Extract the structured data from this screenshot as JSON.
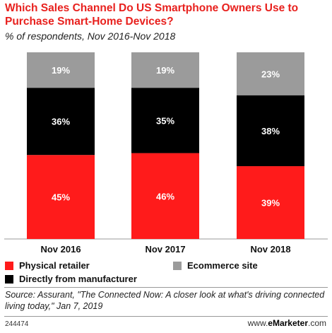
{
  "title": "Which Sales Channel Do US Smartphone Owners Use to Purchase Smart-Home Devices?",
  "subtitle": "% of respondents, Nov 2016-Nov 2018",
  "chart_data": {
    "type": "bar",
    "stacked": true,
    "categories": [
      "Nov 2016",
      "Nov 2017",
      "Nov 2018"
    ],
    "series": [
      {
        "name": "Physical retailer",
        "values": [
          45,
          46,
          39
        ],
        "labels": [
          "45%",
          "46%",
          "39%"
        ],
        "color": "#ff1b1b"
      },
      {
        "name": "Directly from manufacturer",
        "values": [
          36,
          35,
          38
        ],
        "labels": [
          "36%",
          "35%",
          "38%"
        ],
        "color": "#000000"
      },
      {
        "name": "Ecommerce site",
        "values": [
          19,
          19,
          23
        ],
        "labels": [
          "19%",
          "19%",
          "23%"
        ],
        "color": "#9b9b9b"
      }
    ],
    "ylim": [
      0,
      100
    ],
    "grid": false
  },
  "legend": {
    "physical": "Physical retailer",
    "ecommerce": "Ecommerce site",
    "direct": "Directly from manufacturer"
  },
  "source": "Source: Assurant, \"The Connected Now: A closer look at what's driving connected living today,\" Jan 7, 2019",
  "footer": {
    "id": "244474",
    "brand_prefix": "www.",
    "brand_name": "eMarketer",
    "brand_suffix": ".com"
  }
}
